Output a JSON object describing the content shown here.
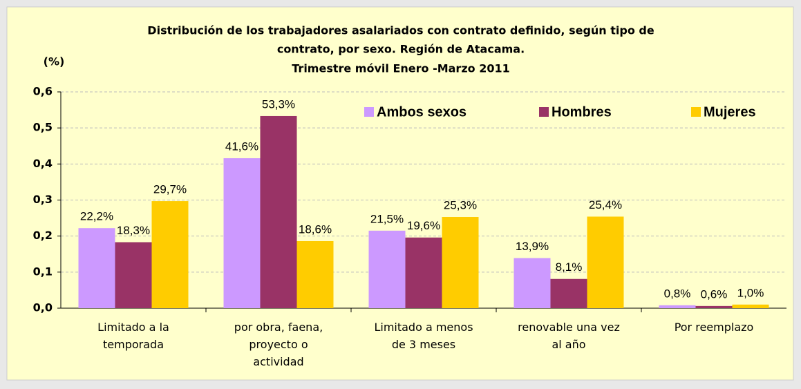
{
  "chart_data": {
    "type": "bar",
    "title": [
      "Distribución de los trabajadores asalariados con contrato definido, según tipo de",
      "contrato, por sexo. Región de Atacama.",
      "Trimestre móvil Enero -Marzo 2011"
    ],
    "y_label": "(%)",
    "categories": [
      "Limitado a la temporada",
      "por obra, faena, proyecto o actividad",
      "Limitado a menos de 3 meses",
      "renovable una vez al año",
      "Por reemplazo"
    ],
    "series": [
      {
        "name": "Ambos sexos",
        "color": "#cc99ff",
        "values": [
          0.222,
          0.416,
          0.215,
          0.139,
          0.008
        ],
        "value_labels": [
          "22,2%",
          "41,6%",
          "21,5%",
          "13,9%",
          "0,8%"
        ]
      },
      {
        "name": "Hombres",
        "color": "#993366",
        "values": [
          0.183,
          0.533,
          0.196,
          0.081,
          0.006
        ],
        "value_labels": [
          "18,3%",
          "53,3%",
          "19,6%",
          "8,1%",
          "0,6%"
        ]
      },
      {
        "name": "Mujeres",
        "color": "#ffcc00",
        "values": [
          0.297,
          0.186,
          0.253,
          0.254,
          0.01
        ],
        "value_labels": [
          "29,7%",
          "18,6%",
          "25,3%",
          "25,4%",
          "1,0%"
        ]
      }
    ],
    "ylim": [
      0,
      0.6
    ],
    "yticks": [
      {
        "value": 0,
        "label": "0,0"
      },
      {
        "value": 0.1,
        "label": "0,1"
      },
      {
        "value": 0.2,
        "label": "0,2"
      },
      {
        "value": 0.3,
        "label": "0,3"
      },
      {
        "value": 0.4,
        "label": "0,4"
      },
      {
        "value": 0.5,
        "label": "0,5"
      },
      {
        "value": 0.6,
        "label": "0,6"
      }
    ],
    "grid": true
  }
}
